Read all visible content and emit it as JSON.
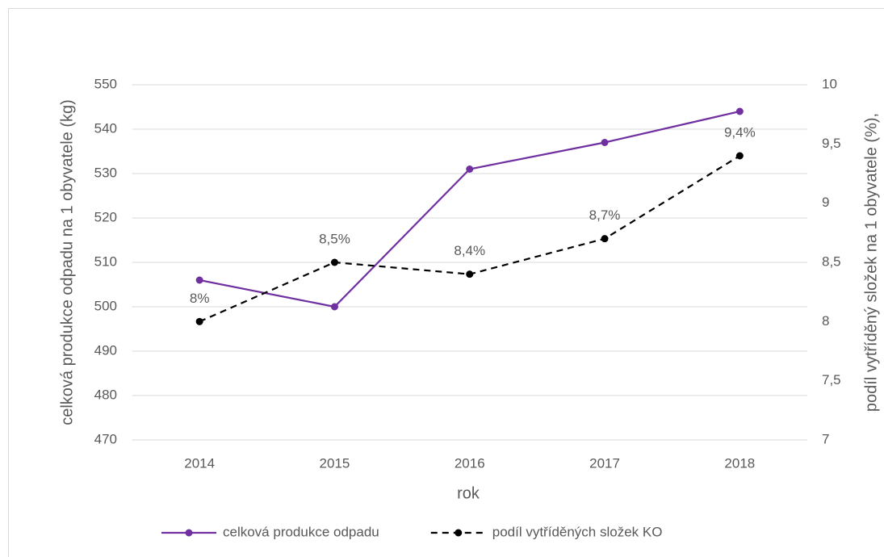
{
  "chart_data": {
    "type": "line",
    "categories": [
      "2014",
      "2015",
      "2016",
      "2017",
      "2018"
    ],
    "xlabel": "rok",
    "ylabel": "celková produkce odpadu na 1 obyvatele (kg)",
    "y2label": "podíl vytříděný složek na 1 obyvatele (%),",
    "ylim": [
      470,
      550
    ],
    "yticks": [
      470,
      480,
      490,
      500,
      510,
      520,
      530,
      540,
      550
    ],
    "y2lim": [
      7,
      10
    ],
    "y2ticks": [
      7,
      {
        "value": 7.5,
        "label": "7,5"
      },
      8,
      {
        "value": 8.5,
        "label": "8,5"
      },
      9,
      {
        "value": 9.5,
        "label": "9,5"
      },
      10
    ],
    "grid": true,
    "legend": "bottom",
    "series": [
      {
        "name": "celková produkce odpadu",
        "color": "#7030a0",
        "dash": false,
        "values": [
          506,
          500,
          531,
          537,
          544
        ]
      },
      {
        "name": "podíl vytříděných složek KO",
        "color": "#000000",
        "dash": true,
        "axis": "y2",
        "values": [
          8,
          8.5,
          8.4,
          8.7,
          9.4
        ],
        "value_labels": [
          "8%",
          "8,5%",
          "8,4%",
          "8,7%",
          "9,4%"
        ]
      }
    ]
  }
}
